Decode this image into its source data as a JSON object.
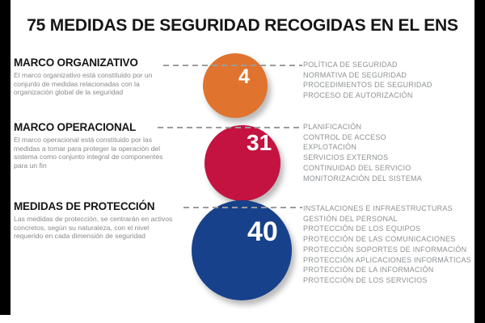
{
  "title": "75 MEDIDAS DE SEGURIDAD RECOGIDAS EN EL ENS",
  "sections": [
    {
      "heading": "MARCO ORGANIZATIVO",
      "description": "El marco organizativo está constituido por un conjunto de medidas relacionadas con la organización global de la seguridad",
      "count": "4",
      "color": "#e0732d",
      "items": [
        "POLÍTICA DE SEGURIDAD",
        "NORMATIVA DE SEGURIDAD",
        "PROCEDIMIENTOS DE SEGURIDAD",
        "PROCESO DE AUTORIZACIÓN"
      ]
    },
    {
      "heading": "MARCO OPERACIONAL",
      "description": "El marco operacional está constituido por las medidas a tomar para proteger la operación del sistema como conjunto integral de componentes para un fin",
      "count": "31",
      "color": "#c41340",
      "items": [
        "PLANIFICACIÓN",
        "CONTROL DE ACCESO",
        "EXPLOTACIÓN",
        "SERVICIOS EXTERNOS",
        "CONTINUIDAD DEL SERVICIO",
        "MONITORIZACIÓN DEL SISTEMA"
      ]
    },
    {
      "heading": "MEDIDAS DE PROTECCIÓN",
      "description": "Las medidas de protección, se centrarán en activos concretos, según su naturaleza, con el nivel requerido en cada dimensión de seguridad",
      "count": "40",
      "color": "#17418a",
      "items": [
        "INSTALACIONES E INFRAESTRUCTURAS",
        "GESTIÓN DEL PERSONAL",
        "PROTECCIÓN DE LOS EQUIPOS",
        "PROTECCIÓN DE LAS COMUNICACIONES",
        "PROTECCIÓN SOPORTES DE INFORMACIÓN",
        "PROTECCIÓN APLICACIONES INFORMÁTICAS",
        "PROTECCIÓN DE LA INFORMACIÓN",
        "PROTECCIÓN DE LOS SERVICIOS"
      ]
    }
  ]
}
